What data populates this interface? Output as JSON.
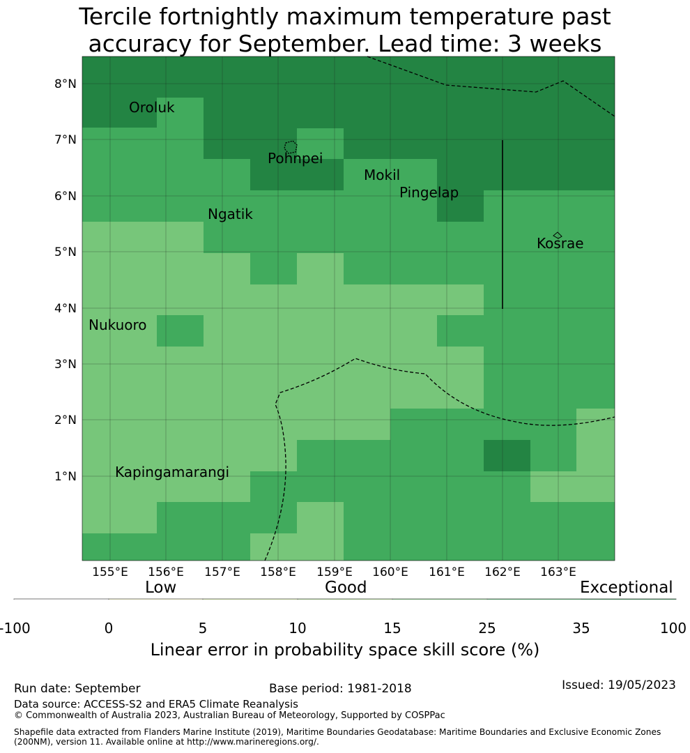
{
  "title": {
    "line1": "Tercile fortnightly maximum temperature past",
    "line2": "accuracy for September. Lead time: 3 weeks"
  },
  "map": {
    "lat_labels": [
      "8°N",
      "7°N",
      "6°N",
      "5°N",
      "4°N",
      "3°N",
      "2°N",
      "1°N"
    ],
    "lon_labels": [
      "155°E",
      "156°E",
      "157°E",
      "158°E",
      "159°E",
      "160°E",
      "161°E",
      "162°E",
      "163°E"
    ],
    "places": [
      "Oroluk",
      "Pohnpei",
      "Mokil",
      "Pingelap",
      "Ngatik",
      "Kosrae",
      "Nukuoro",
      "Kapingamarangi"
    ],
    "colors": {
      "c15_25": "#77c67a",
      "c25_35": "#41ab5d",
      "c35_100": "#238443"
    }
  },
  "colorbar": {
    "categories": [
      "Low",
      "Good",
      "Exceptional"
    ],
    "ticks": [
      "-100",
      "0",
      "5",
      "10",
      "15",
      "25",
      "35",
      "100"
    ],
    "colors": [
      "#ffffff",
      "#ffffcc",
      "#d9f0a3",
      "#addd8e",
      "#78c679",
      "#41ab5d",
      "#238443"
    ],
    "label": "Linear error in probability space skill score (%)"
  },
  "footer": {
    "run_date": "Run date: September",
    "base_period": "Base period: 1981-2018",
    "issued": "Issued: 19/05/2023",
    "data_source": "Data source: ACCESS-S2 and ERA5 Climate Reanalysis",
    "copyright": "© Commonwealth of Australia 2023, Australian Bureau of Meteorology, Supported by COSPPac",
    "shapefile_line1": "Shapefile data extracted from Flanders Marine Institute (2019), Maritime Boundaries Geodatabase: Maritime Boundaries and Exclusive Economic Zones",
    "shapefile_line2": "(200NM), version 11. Available online at http://www.marineregions.org/."
  }
}
